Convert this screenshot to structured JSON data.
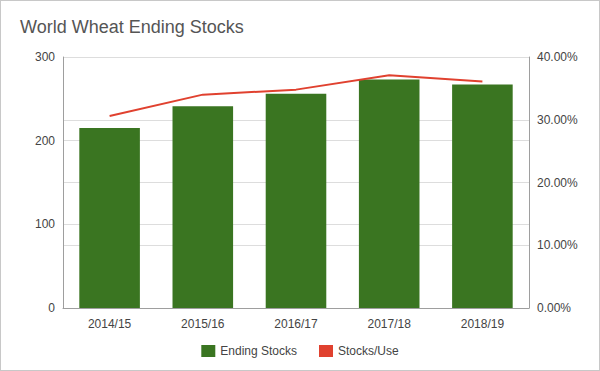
{
  "chart_data": {
    "type": "bar",
    "title": "World Wheat Ending Stocks",
    "categories": [
      "2014/15",
      "2015/16",
      "2016/17",
      "2017/18",
      "2018/19"
    ],
    "series": [
      {
        "name": "Ending Stocks",
        "type": "bar",
        "color": "#3a7521",
        "values": [
          215,
          241,
          256,
          273,
          267
        ]
      },
      {
        "name": "Stocks/Use",
        "type": "line",
        "color": "#e0412f",
        "axis": "y2",
        "values": [
          30.6,
          34.0,
          34.8,
          37.1,
          36.1
        ]
      }
    ],
    "ylim": [
      0,
      300
    ],
    "yticks": [
      0,
      100,
      200,
      300
    ],
    "y2lim": [
      0,
      40
    ],
    "y2ticks": [
      {
        "value": 0,
        "label": "0.00%"
      },
      {
        "value": 10,
        "label": "10.00%"
      },
      {
        "value": 20,
        "label": "20.00%"
      },
      {
        "value": 30,
        "label": "30.00%"
      },
      {
        "value": 40,
        "label": "40.00%"
      }
    ],
    "grid": true,
    "legend": "bottom"
  }
}
